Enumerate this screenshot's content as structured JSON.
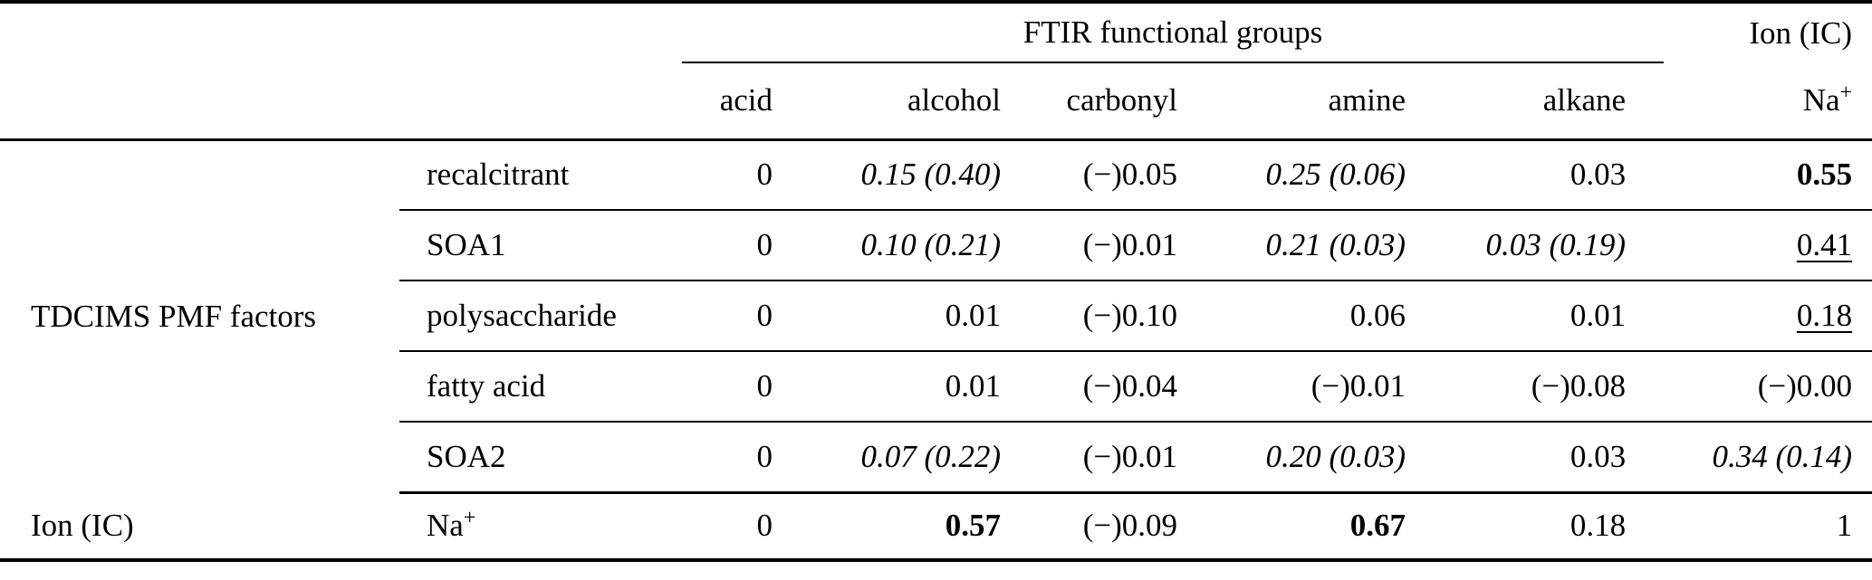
{
  "colors": {
    "background": "#ffffff",
    "text": "#000000",
    "rule": "#000000"
  },
  "chart_data": {
    "type": "table",
    "header": {
      "ftir_group_label": "FTIR functional groups",
      "ion_group_label": "Ion (IC)",
      "ftir_columns": [
        "acid",
        "alcohol",
        "carbonyl",
        "amine",
        "alkane"
      ],
      "ion_column": {
        "text": "Na",
        "sup": "+"
      }
    },
    "row_groups": [
      {
        "group_label": "TDCIMS PMF factors",
        "rows": [
          {
            "label": {
              "text": "recalcitrant"
            },
            "cells": [
              {
                "text": "0",
                "style": "normal"
              },
              {
                "text": "0.15 (0.40)",
                "style": "italic"
              },
              {
                "text": "(−)0.05",
                "style": "normal"
              },
              {
                "text": "0.25 (0.06)",
                "style": "italic"
              },
              {
                "text": "0.03",
                "style": "normal"
              },
              {
                "text": "0.55",
                "style": "bold"
              }
            ]
          },
          {
            "label": {
              "text": "SOA1"
            },
            "cells": [
              {
                "text": "0",
                "style": "normal"
              },
              {
                "text": "0.10 (0.21)",
                "style": "italic"
              },
              {
                "text": "(−)0.01",
                "style": "normal"
              },
              {
                "text": "0.21 (0.03)",
                "style": "italic"
              },
              {
                "text": "0.03 (0.19)",
                "style": "italic"
              },
              {
                "text": "0.41",
                "style": "underline"
              }
            ]
          },
          {
            "label": {
              "text": "polysaccharide"
            },
            "cells": [
              {
                "text": "0",
                "style": "normal"
              },
              {
                "text": "0.01",
                "style": "normal"
              },
              {
                "text": "(−)0.10",
                "style": "normal"
              },
              {
                "text": "0.06",
                "style": "normal"
              },
              {
                "text": "0.01",
                "style": "normal"
              },
              {
                "text": "0.18",
                "style": "underline"
              }
            ]
          },
          {
            "label": {
              "text": "fatty acid"
            },
            "cells": [
              {
                "text": "0",
                "style": "normal"
              },
              {
                "text": "0.01",
                "style": "normal"
              },
              {
                "text": "(−)0.04",
                "style": "normal"
              },
              {
                "text": "(−)0.01",
                "style": "normal"
              },
              {
                "text": "(−)0.08",
                "style": "normal"
              },
              {
                "text": "(−)0.00",
                "style": "normal"
              }
            ]
          },
          {
            "label": {
              "text": "SOA2"
            },
            "cells": [
              {
                "text": "0",
                "style": "normal"
              },
              {
                "text": "0.07 (0.22)",
                "style": "italic"
              },
              {
                "text": "(−)0.01",
                "style": "normal"
              },
              {
                "text": "0.20 (0.03)",
                "style": "italic"
              },
              {
                "text": "0.03",
                "style": "normal"
              },
              {
                "text": "0.34 (0.14)",
                "style": "italic"
              }
            ]
          }
        ]
      },
      {
        "group_label": "Ion (IC)",
        "rows": [
          {
            "label": {
              "text": "Na",
              "sup": "+"
            },
            "cells": [
              {
                "text": "0",
                "style": "normal"
              },
              {
                "text": "0.57",
                "style": "bold"
              },
              {
                "text": "(−)0.09",
                "style": "normal"
              },
              {
                "text": "0.67",
                "style": "bold"
              },
              {
                "text": "0.18",
                "style": "normal"
              },
              {
                "text": "1",
                "style": "normal"
              }
            ]
          }
        ]
      }
    ]
  }
}
